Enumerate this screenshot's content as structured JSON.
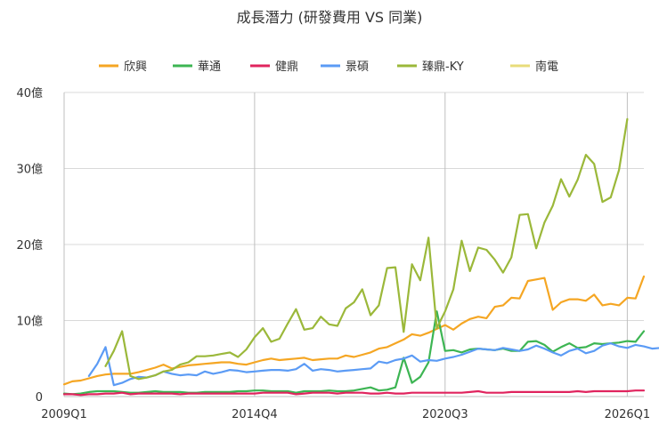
{
  "chart_data": {
    "type": "line",
    "title": "成長潛力 (研發費用 VS 同業)",
    "xlabel": "",
    "ylabel": "",
    "ylim": [
      0,
      40
    ],
    "yticks": [
      0,
      10,
      20,
      30,
      40
    ],
    "ytick_labels": [
      "0",
      "10億",
      "20億",
      "30億",
      "40億"
    ],
    "x_start": "2009Q1",
    "x_end": "2026Q2",
    "xtick_labels": [
      "2009Q1",
      "2014Q4",
      "2020Q3",
      "2026Q1"
    ],
    "xtick_indices": [
      0,
      23,
      46,
      68
    ],
    "grid": "vertical",
    "legend_position": "top",
    "series": [
      {
        "name": "欣興",
        "color": "#F5A623",
        "start": 0,
        "values": [
          1.6,
          2.0,
          2.1,
          2.4,
          2.7,
          2.9,
          3.0,
          3.0,
          3.0,
          3.2,
          3.5,
          3.8,
          4.2,
          3.7,
          3.9,
          4.1,
          4.2,
          4.3,
          4.4,
          4.5,
          4.5,
          4.3,
          4.2,
          4.5,
          4.8,
          5.0,
          4.8,
          4.9,
          5.0,
          5.1,
          4.8,
          4.9,
          5.0,
          5.0,
          5.4,
          5.2,
          5.5,
          5.8,
          6.3,
          6.5,
          7.0,
          7.5,
          8.2,
          8.0,
          8.4,
          8.9,
          9.4,
          8.8,
          9.6,
          10.2,
          10.5,
          10.3,
          11.8,
          12.0,
          13.0,
          12.9,
          15.2,
          15.4,
          15.6,
          11.4,
          12.4,
          12.8,
          12.8,
          12.6,
          13.4,
          12.0,
          12.2,
          12.0,
          13.0,
          12.9,
          15.8
        ]
      },
      {
        "name": "華通",
        "color": "#3DB553",
        "start": 0,
        "values": [
          0.4,
          0.3,
          0.4,
          0.6,
          0.7,
          0.7,
          0.7,
          0.6,
          0.5,
          0.5,
          0.6,
          0.7,
          0.6,
          0.6,
          0.6,
          0.5,
          0.5,
          0.6,
          0.6,
          0.6,
          0.6,
          0.7,
          0.7,
          0.8,
          0.8,
          0.7,
          0.7,
          0.7,
          0.5,
          0.7,
          0.7,
          0.7,
          0.8,
          0.7,
          0.7,
          0.8,
          1.0,
          1.2,
          0.8,
          0.9,
          1.2,
          5.1,
          1.8,
          2.6,
          4.5,
          11.2,
          6.0,
          6.1,
          5.8,
          6.2,
          6.3,
          6.2,
          6.1,
          6.3,
          6.0,
          6.0,
          7.2,
          7.3,
          6.8,
          5.9,
          6.5,
          7.0,
          6.4,
          6.5,
          7.0,
          6.9,
          7.0,
          7.1,
          7.3,
          7.2,
          8.6
        ]
      },
      {
        "name": "健鼎",
        "color": "#E0245E",
        "start": 0,
        "values": [
          0.3,
          0.3,
          0.2,
          0.3,
          0.3,
          0.4,
          0.4,
          0.5,
          0.3,
          0.4,
          0.4,
          0.4,
          0.4,
          0.4,
          0.3,
          0.4,
          0.4,
          0.4,
          0.4,
          0.4,
          0.4,
          0.4,
          0.4,
          0.4,
          0.5,
          0.5,
          0.5,
          0.5,
          0.3,
          0.4,
          0.5,
          0.5,
          0.5,
          0.4,
          0.5,
          0.5,
          0.5,
          0.4,
          0.4,
          0.5,
          0.4,
          0.4,
          0.5,
          0.5,
          0.5,
          0.5,
          0.5,
          0.5,
          0.5,
          0.6,
          0.7,
          0.5,
          0.5,
          0.5,
          0.6,
          0.6,
          0.6,
          0.6,
          0.6,
          0.6,
          0.6,
          0.6,
          0.7,
          0.6,
          0.7,
          0.7,
          0.7,
          0.7,
          0.7,
          0.8,
          0.8
        ]
      },
      {
        "name": "景碩",
        "color": "#5B9BF5",
        "start": 3,
        "values": [
          2.7,
          4.3,
          6.5,
          1.5,
          1.8,
          2.3,
          2.6,
          2.5,
          2.8,
          3.3,
          3.0,
          2.8,
          2.9,
          2.8,
          3.3,
          3.0,
          3.2,
          3.5,
          3.4,
          3.2,
          3.3,
          3.4,
          3.5,
          3.5,
          3.4,
          3.6,
          4.3,
          3.4,
          3.6,
          3.5,
          3.3,
          3.4,
          3.5,
          3.6,
          3.7,
          4.6,
          4.4,
          4.8,
          5.0,
          5.4,
          4.6,
          4.8,
          4.7,
          5.0,
          5.2,
          5.5,
          5.9,
          6.3,
          6.2,
          6.1,
          6.4,
          6.2,
          6.0,
          6.2,
          6.7,
          6.3,
          5.8,
          5.4,
          6.0,
          6.3,
          5.7,
          6.0,
          6.7,
          7.0,
          6.6,
          6.4,
          6.8,
          6.6,
          6.3,
          6.4
        ]
      },
      {
        "name": "臻鼎-KY",
        "color": "#9BB83A",
        "start": 5,
        "values": [
          4.0,
          6.0,
          8.6,
          2.7,
          2.3,
          2.5,
          2.8,
          3.3,
          3.5,
          4.2,
          4.5,
          5.3,
          5.3,
          5.4,
          5.6,
          5.8,
          5.2,
          6.2,
          7.8,
          9.0,
          7.2,
          7.6,
          9.6,
          11.5,
          8.8,
          9.0,
          10.5,
          9.5,
          9.3,
          11.6,
          12.4,
          14.1,
          10.7,
          12.0,
          16.9,
          17.0,
          8.5,
          17.4,
          15.3,
          20.9,
          9.0,
          11.2,
          14.1,
          20.5,
          16.5,
          19.6,
          19.3,
          18.0,
          16.3,
          18.3,
          23.9,
          24.0,
          19.5,
          22.9,
          25.1,
          28.6,
          26.3,
          28.5,
          31.8,
          30.6,
          25.6,
          26.2,
          29.8,
          36.5
        ]
      },
      {
        "name": "南電",
        "color": "#E8DC7A",
        "start": 0,
        "values": []
      }
    ]
  }
}
